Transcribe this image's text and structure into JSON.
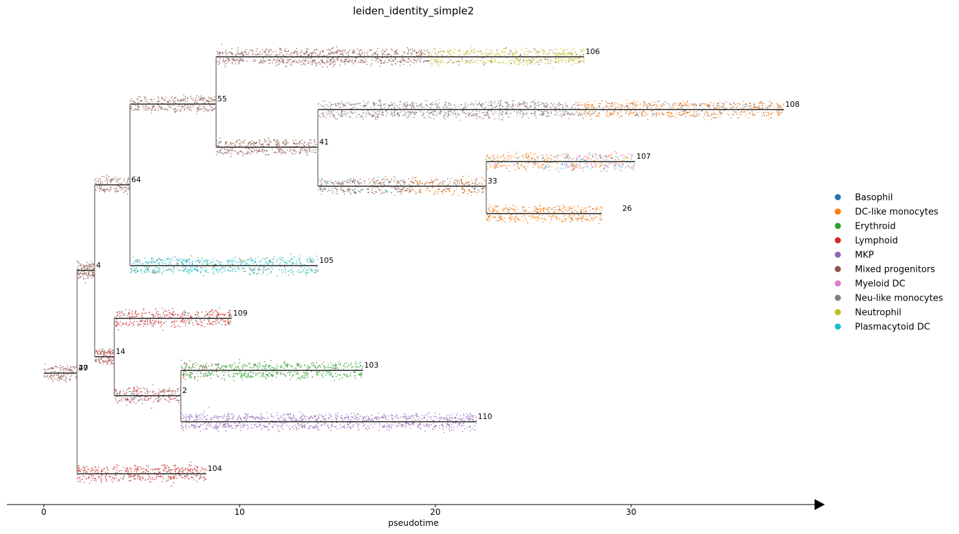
{
  "chart_data": {
    "type": "scatter",
    "title": "leiden_identity_simple2",
    "xlabel": "pseudotime",
    "xlim": [
      -1.9,
      39.7
    ],
    "xticks": [
      0,
      10,
      20,
      30
    ],
    "legend_position": "right",
    "palette": {
      "Basophil": "#1f77b4",
      "DC-like monocytes": "#ff7f0e",
      "Erythroid": "#2ca02c",
      "Lymphoid": "#d62728",
      "MKP": "#9467bd",
      "Mixed progenitors": "#8c564b",
      "Myeloid DC": "#e377c2",
      "Neu-like monocytes": "#7f7f7f",
      "Neutrophil": "#bcbd22",
      "Plasmacytoid DC": "#17becf"
    },
    "legend": [
      "Basophil",
      "DC-like monocytes",
      "Erythroid",
      "Lymphoid",
      "MKP",
      "Mixed progenitors",
      "Myeloid DC",
      "Neu-like monocytes",
      "Neutrophil",
      "Plasmacytoid DC"
    ],
    "segments": [
      {
        "node": "40",
        "parent": null,
        "x0": 0.0,
        "x1": 1.7,
        "mix": [
          [
            "Mixed progenitors",
            1
          ]
        ]
      },
      {
        "node": "27",
        "parent": "40",
        "x0": 1.7,
        "x1": 1.7,
        "mix": []
      },
      {
        "node": "4",
        "parent": "27",
        "x0": 1.7,
        "x1": 2.6,
        "mix": [
          [
            "Mixed progenitors",
            1
          ]
        ]
      },
      {
        "node": "64",
        "parent": "4",
        "x0": 2.6,
        "x1": 4.4,
        "mix": [
          [
            "Mixed progenitors",
            1
          ]
        ]
      },
      {
        "node": "55",
        "parent": "64",
        "x0": 4.4,
        "x1": 8.8,
        "mix": [
          [
            "Mixed progenitors",
            1
          ]
        ]
      },
      {
        "node": "106",
        "parent": "55",
        "x0": 8.8,
        "x1": 27.6,
        "mix": [
          [
            "Mixed progenitors",
            1
          ]
        ],
        "mix_after": [
          19.7,
          [
            [
              "Neutrophil",
              0.85
            ],
            [
              "Mixed progenitors",
              0.15
            ]
          ]
        ]
      },
      {
        "node": "41",
        "parent": "55",
        "x0": 8.8,
        "x1": 14.0,
        "mix": [
          [
            "Mixed progenitors",
            1
          ]
        ]
      },
      {
        "node": "108",
        "parent": "41",
        "x0": 14.0,
        "x1": 37.8,
        "mix": [
          [
            "Neu-like monocytes",
            0.75
          ],
          [
            "Mixed progenitors",
            0.25
          ]
        ],
        "mix_after": [
          27.0,
          [
            [
              "DC-like monocytes",
              0.6
            ],
            [
              "Mixed progenitors",
              0.25
            ],
            [
              "Neu-like monocytes",
              0.15
            ]
          ]
        ]
      },
      {
        "node": "33",
        "parent": "41",
        "x0": 14.0,
        "x1": 22.6,
        "mix": [
          [
            "Mixed progenitors",
            0.55
          ],
          [
            "Neu-like monocytes",
            0.3
          ],
          [
            "Plasmacytoid DC",
            0.1
          ],
          [
            "DC-like monocytes",
            0.05
          ]
        ],
        "mix_after": [
          18.5,
          [
            [
              "Mixed progenitors",
              0.45
            ],
            [
              "DC-like monocytes",
              0.4
            ],
            [
              "Neu-like monocytes",
              0.15
            ]
          ]
        ]
      },
      {
        "node": "107",
        "parent": "33",
        "x0": 22.6,
        "x1": 30.2,
        "mix": [
          [
            "DC-like monocytes",
            0.7
          ],
          [
            "Plasmacytoid DC",
            0.1
          ],
          [
            "Myeloid DC",
            0.15
          ],
          [
            "Neu-like monocytes",
            0.05
          ]
        ],
        "mix_after": [
          26.0,
          [
            [
              "Myeloid DC",
              0.4
            ],
            [
              "DC-like monocytes",
              0.35
            ],
            [
              "Plasmacytoid DC",
              0.25
            ]
          ]
        ]
      },
      {
        "node": "26",
        "parent": "33",
        "x0": 22.6,
        "x1": 28.5,
        "mix": [
          [
            "DC-like monocytes",
            0.85
          ],
          [
            "Mixed progenitors",
            0.15
          ]
        ]
      },
      {
        "node": "105",
        "parent": "64",
        "x0": 4.4,
        "x1": 14.0,
        "mix": [
          [
            "Plasmacytoid DC",
            0.75
          ],
          [
            "Erythroid",
            0.1
          ],
          [
            "Mixed progenitors",
            0.15
          ]
        ]
      },
      {
        "node": "14",
        "parent": "4",
        "x0": 2.6,
        "x1": 3.6,
        "mix": [
          [
            "Mixed progenitors",
            0.6
          ],
          [
            "Lymphoid",
            0.4
          ]
        ]
      },
      {
        "node": "109",
        "parent": "14",
        "x0": 3.6,
        "x1": 9.6,
        "mix": [
          [
            "Lymphoid",
            0.85
          ],
          [
            "Basophil",
            0.1
          ],
          [
            "Mixed progenitors",
            0.05
          ]
        ]
      },
      {
        "node": "2",
        "parent": "14",
        "x0": 3.6,
        "x1": 7.0,
        "mix": [
          [
            "Mixed progenitors",
            0.55
          ],
          [
            "Lymphoid",
            0.35
          ],
          [
            "Basophil",
            0.1
          ]
        ]
      },
      {
        "node": "103",
        "parent": "2",
        "x0": 7.0,
        "x1": 16.3,
        "mix": [
          [
            "Mixed progenitors",
            0.5
          ],
          [
            "Erythroid",
            0.5
          ]
        ],
        "mix_after": [
          9.0,
          [
            [
              "Erythroid",
              0.95
            ],
            [
              "Mixed progenitors",
              0.05
            ]
          ]
        ]
      },
      {
        "node": "110",
        "parent": "2",
        "x0": 7.0,
        "x1": 22.1,
        "mix": [
          [
            "MKP",
            0.95
          ],
          [
            "Mixed progenitors",
            0.05
          ]
        ]
      },
      {
        "node": "104",
        "parent": "27",
        "x0": 1.7,
        "x1": 8.3,
        "mix": [
          [
            "Lymphoid",
            0.75
          ],
          [
            "Mixed progenitors",
            0.25
          ]
        ]
      }
    ]
  }
}
